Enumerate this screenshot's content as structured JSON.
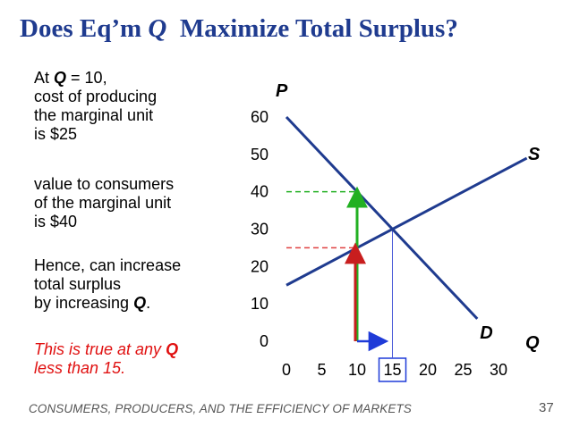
{
  "slide": {
    "title_prefix": "Does Eq’m ",
    "title_q": "Q",
    "title_suffix": "  Maximize Total Surplus?",
    "para1": {
      "l1_pre": "At ",
      "l1_q": "Q",
      "l1_post": " = 10,",
      "l2": "cost of producing",
      "l3": "the marginal unit",
      "l4": "is $25"
    },
    "para2": {
      "l1": "value to consumers",
      "l2": "of the marginal unit",
      "l3": "is $40"
    },
    "para3": {
      "l1": "Hence, can increase",
      "l2": "total surplus",
      "l3_pre": "by increasing ",
      "l3_q": "Q",
      "l3_post": "."
    },
    "note": {
      "l1_pre": "This is true at any ",
      "l1_q": "Q",
      "l2": "less than 15."
    },
    "footer": "CONSUMERS, PRODUCERS, AND THE EFFICIENCY OF MARKETS",
    "page_number": "37"
  },
  "colors": {
    "curve": "#1f3b8f",
    "green": "#22b022",
    "red": "#c81e1e",
    "blue_arrow": "#1f3bd8",
    "green_dash": "#22b022",
    "red_dash": "#e04040"
  },
  "chart_data": {
    "type": "line",
    "title": "",
    "xlabel": "Q",
    "ylabel": "P",
    "xlim": [
      0,
      30
    ],
    "ylim": [
      0,
      60
    ],
    "x_ticks": [
      "0",
      "5",
      "10",
      "15",
      "20",
      "25",
      "30"
    ],
    "y_ticks": [
      "0",
      "10",
      "20",
      "30",
      "40",
      "50",
      "60"
    ],
    "highlighted_x_tick": "15",
    "grid": false,
    "series": [
      {
        "name": "D",
        "x": [
          0,
          27
        ],
        "y": [
          60,
          6
        ]
      },
      {
        "name": "S",
        "x": [
          0,
          34
        ],
        "y": [
          15,
          49
        ]
      }
    ],
    "annotations": {
      "equilibrium": {
        "q": 15,
        "p": 30
      },
      "marginal_unit_q": 10,
      "value_to_consumers": 40,
      "cost_of_producing": 25,
      "increase_q_arrow": {
        "from": 10,
        "to": 13.5
      }
    }
  }
}
